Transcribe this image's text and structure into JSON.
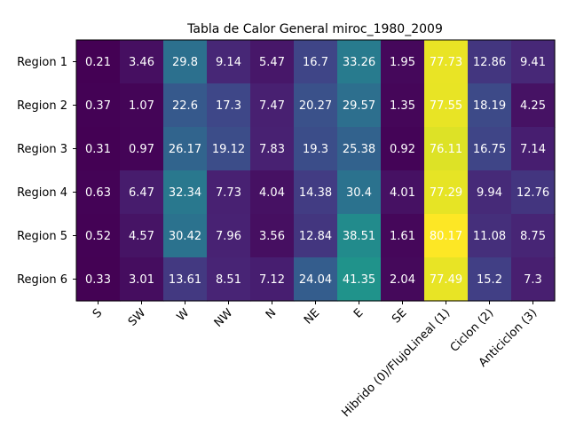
{
  "chart_data": {
    "type": "heatmap",
    "title": "Tabla de Calor General miroc_1980_2009",
    "rows": [
      "Region 1",
      "Region 2",
      "Region 3",
      "Region 4",
      "Region 5",
      "Region 6"
    ],
    "columns": [
      "S",
      "SW",
      "W",
      "NW",
      "N",
      "NE",
      "E",
      "SE",
      "Hibrido (0)/FlujoLineal (1)",
      "Ciclon (2)",
      "Anticiclon (3)"
    ],
    "values": [
      [
        0.21,
        3.46,
        29.8,
        9.14,
        5.47,
        16.7,
        33.26,
        1.95,
        77.73,
        12.86,
        9.41
      ],
      [
        0.37,
        1.07,
        22.6,
        17.3,
        7.47,
        20.27,
        29.57,
        1.35,
        77.55,
        18.19,
        4.25
      ],
      [
        0.31,
        0.97,
        26.17,
        19.12,
        7.83,
        19.3,
        25.38,
        0.92,
        76.11,
        16.75,
        7.14
      ],
      [
        0.63,
        6.47,
        32.34,
        7.73,
        4.04,
        14.38,
        30.4,
        4.01,
        77.29,
        9.94,
        12.76
      ],
      [
        0.52,
        4.57,
        30.42,
        7.96,
        3.56,
        12.84,
        38.51,
        1.61,
        80.17,
        11.08,
        8.75
      ],
      [
        0.33,
        3.01,
        13.61,
        8.51,
        7.12,
        24.04,
        41.35,
        2.04,
        77.49,
        15.2,
        7.3
      ]
    ],
    "colormap": "viridis",
    "annotation_color": "#ffffff"
  }
}
